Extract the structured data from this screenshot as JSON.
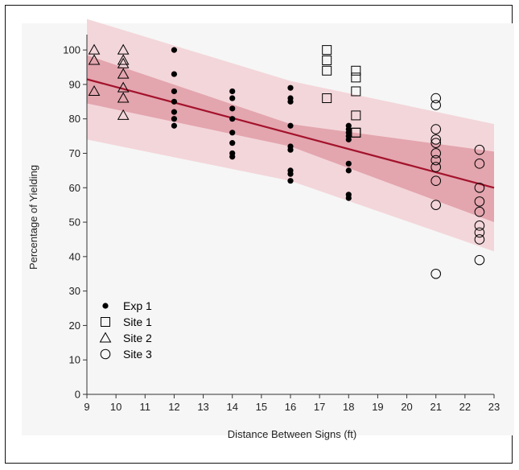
{
  "chart_data": {
    "type": "scatter",
    "xlabel": "Distance Between Signs (ft)",
    "ylabel": "Percentage of Yielding",
    "xlim": [
      9,
      23
    ],
    "ylim": [
      0,
      104
    ],
    "x_ticks": [
      "9",
      "10",
      "11",
      "12",
      "13",
      "14",
      "15",
      "16",
      "17",
      "18",
      "19",
      "20",
      "21",
      "22",
      "23"
    ],
    "y_ticks": [
      "0",
      "10",
      "20",
      "30",
      "40",
      "50",
      "60",
      "70",
      "80",
      "90",
      "100"
    ],
    "colors": {
      "fit_line": "#a3122b",
      "prediction_band": "#f3d6da",
      "confidence_band": "#e3a5ae",
      "markers": "#000000",
      "background": "#f6f6f6"
    },
    "fit_line": {
      "x": [
        9,
        23
      ],
      "y": [
        91.5,
        60.0
      ]
    },
    "confidence_band": {
      "x": [
        9,
        16,
        23
      ],
      "upper": [
        98.5,
        78.5,
        70.5
      ],
      "lower": [
        84.5,
        72.0,
        50.0
      ]
    },
    "prediction_band": {
      "x": [
        9,
        16,
        23
      ],
      "upper": [
        109,
        91,
        78.5
      ],
      "lower": [
        74,
        62,
        41.5
      ]
    },
    "legend": {
      "placement": "bottom-left",
      "entries": [
        "Exp 1",
        "Site 1",
        "Site 2",
        "Site 3"
      ]
    },
    "series": [
      {
        "name": "Exp 1",
        "marker": "filled-circle",
        "x": [
          12,
          12,
          12,
          12,
          12,
          12,
          12,
          14,
          14,
          14,
          14,
          14,
          14,
          14,
          14,
          16,
          16,
          16,
          16,
          16,
          16,
          16,
          16,
          16,
          18,
          18,
          18,
          18,
          18,
          18,
          18,
          18,
          18
        ],
        "y": [
          100,
          93,
          88,
          85,
          82,
          80,
          78,
          88,
          86,
          83,
          80,
          76,
          73,
          70,
          69,
          89,
          86,
          85,
          78,
          72,
          71,
          65,
          64,
          62,
          78,
          77,
          76,
          75,
          74,
          67,
          65,
          58,
          57
        ]
      },
      {
        "name": "Site 1",
        "marker": "open-square",
        "x": [
          17.25,
          17.25,
          17.25,
          17.25,
          18.25,
          18.25,
          18.25,
          18.25,
          18.25,
          18.25
        ],
        "y": [
          100,
          97,
          94,
          86,
          94,
          92,
          88,
          81,
          76,
          76
        ]
      },
      {
        "name": "Site 2",
        "marker": "open-triangle",
        "x": [
          9.25,
          9.25,
          9.25,
          10.25,
          10.25,
          10.25,
          10.25,
          10.25,
          10.25,
          10.25
        ],
        "y": [
          100,
          97,
          88,
          100,
          97,
          96,
          93,
          89,
          86,
          81
        ]
      },
      {
        "name": "Site 3",
        "marker": "open-circle",
        "x": [
          21,
          21,
          21,
          21,
          21,
          21,
          21,
          21,
          21,
          21,
          21,
          22.5,
          22.5,
          22.5,
          22.5,
          22.5,
          22.5,
          22.5,
          22.5,
          22.5
        ],
        "y": [
          86,
          84,
          77,
          74,
          73,
          70,
          68,
          66,
          62,
          55,
          35,
          71,
          67,
          60,
          56,
          53,
          49,
          47,
          45,
          39
        ]
      }
    ]
  }
}
